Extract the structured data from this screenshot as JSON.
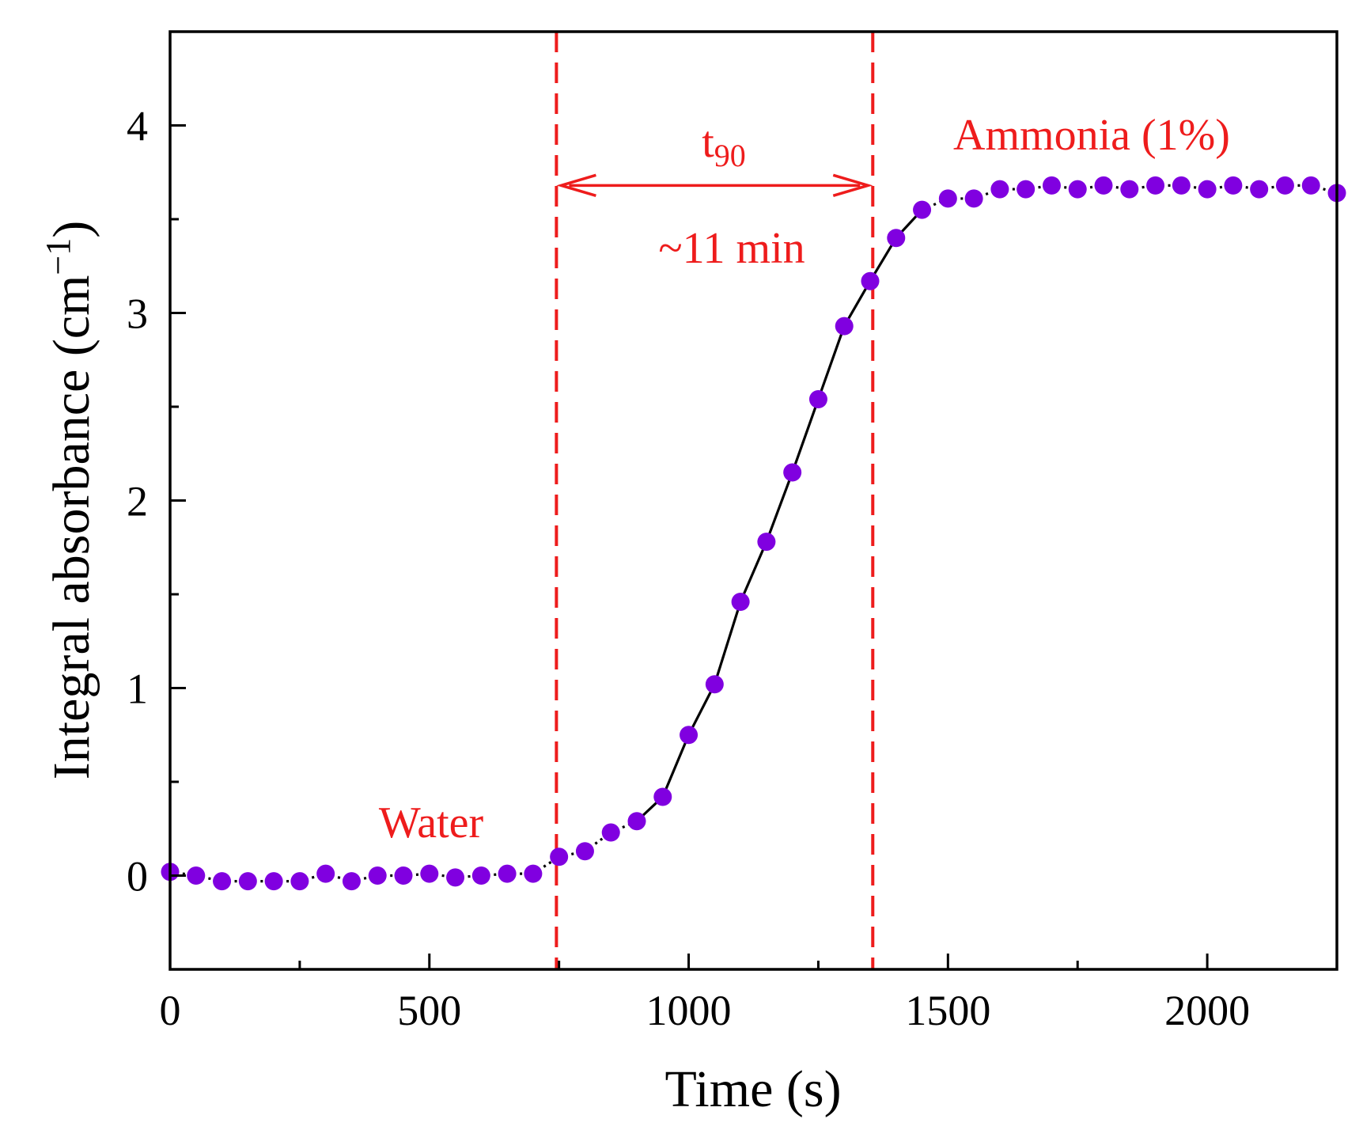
{
  "chart_data": {
    "type": "scatter",
    "xlabel": "Time (s)",
    "ylabel_main": "Integral absorbance (cm",
    "ylabel_sup": "−1",
    "ylabel_close": ")",
    "xlim": [
      0,
      2250
    ],
    "ylim": [
      -0.5,
      4.5
    ],
    "x_ticks": [
      0,
      500,
      1000,
      1500,
      2000
    ],
    "x_tick_labels": [
      "0",
      "500",
      "1000",
      "1500",
      "2000"
    ],
    "x_minor_ticks": [
      250,
      750,
      1250,
      1750
    ],
    "y_ticks": [
      0,
      1,
      2,
      3,
      4
    ],
    "y_tick_labels": [
      "0",
      "1",
      "2",
      "3",
      "4"
    ],
    "y_minor_ticks": [
      0.5,
      1.5,
      2.5,
      3.5
    ],
    "series": [
      {
        "name": "Integral absorbance",
        "marker_color": "#8000e0",
        "line_color": "#000000",
        "x": [
          0,
          50,
          100,
          150,
          200,
          250,
          300,
          350,
          400,
          450,
          500,
          550,
          600,
          650,
          700,
          750,
          800,
          850,
          900,
          950,
          1000,
          1050,
          1100,
          1150,
          1200,
          1250,
          1300,
          1350,
          1400,
          1450,
          1500,
          1550,
          1600,
          1650,
          1700,
          1750,
          1800,
          1850,
          1900,
          1950,
          2000,
          2050,
          2100,
          2150,
          2200,
          2250
        ],
        "y": [
          0.02,
          0.0,
          -0.03,
          -0.03,
          -0.03,
          -0.03,
          0.01,
          -0.03,
          0.0,
          0.0,
          0.01,
          -0.01,
          0.0,
          0.01,
          0.01,
          0.1,
          0.13,
          0.23,
          0.29,
          0.42,
          0.75,
          1.02,
          1.46,
          1.78,
          2.15,
          2.54,
          2.93,
          3.17,
          3.4,
          3.55,
          3.61,
          3.61,
          3.66,
          3.66,
          3.68,
          3.66,
          3.68,
          3.66,
          3.68,
          3.68,
          3.66,
          3.68,
          3.66,
          3.68,
          3.68,
          3.64
        ]
      }
    ],
    "vlines": {
      "x": [
        745,
        1355
      ],
      "color": "#ee1c1c",
      "style": "dashed"
    },
    "interval_arrow": {
      "x_start": 745,
      "x_end": 1355,
      "y": 3.68,
      "label_main": "t",
      "label_sub": "90",
      "label_value": "~11 min"
    },
    "annotations": [
      {
        "id": "water",
        "text": "Water",
        "x": 500,
        "y": 0.3
      },
      {
        "id": "ammonia",
        "text": "Ammonia (1%)",
        "x": 1780,
        "y": 3.95
      }
    ],
    "annotation_color": "#ee1c1c",
    "grid": false
  }
}
